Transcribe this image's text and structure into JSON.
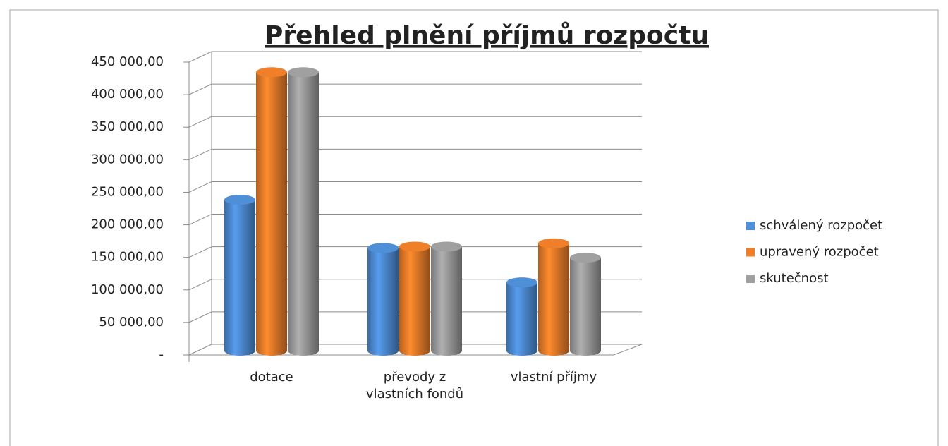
{
  "chart_data": {
    "type": "bar3d",
    "title": "Přehled plnění příjmů rozpočtu",
    "categories": [
      "dotace",
      "převody z vlastních fondů",
      "vlastní příjmy"
    ],
    "series": [
      {
        "name": "schválený rozpočet",
        "color": "#4f8fd8",
        "values": [
          232000,
          158000,
          105000
        ]
      },
      {
        "name": "upravený rozpočet",
        "color": "#f07f2a",
        "values": [
          428000,
          160000,
          165000
        ]
      },
      {
        "name": "skutečnost",
        "color": "#a0a0a0",
        "values": [
          428000,
          160000,
          143000
        ]
      }
    ],
    "ylim": [
      0,
      450000
    ],
    "yticks": [
      {
        "value": 0,
        "label": "-"
      },
      {
        "value": 50000,
        "label": "50 000,00"
      },
      {
        "value": 100000,
        "label": "100 000,00"
      },
      {
        "value": 150000,
        "label": "150 000,00"
      },
      {
        "value": 200000,
        "label": "200 000,00"
      },
      {
        "value": 250000,
        "label": "250 000,00"
      },
      {
        "value": 300000,
        "label": "300 000,00"
      },
      {
        "value": 350000,
        "label": "350 000,00"
      },
      {
        "value": 400000,
        "label": "400 000,00"
      },
      {
        "value": 450000,
        "label": "450 000,00"
      }
    ],
    "grid": true,
    "legend": "right"
  }
}
